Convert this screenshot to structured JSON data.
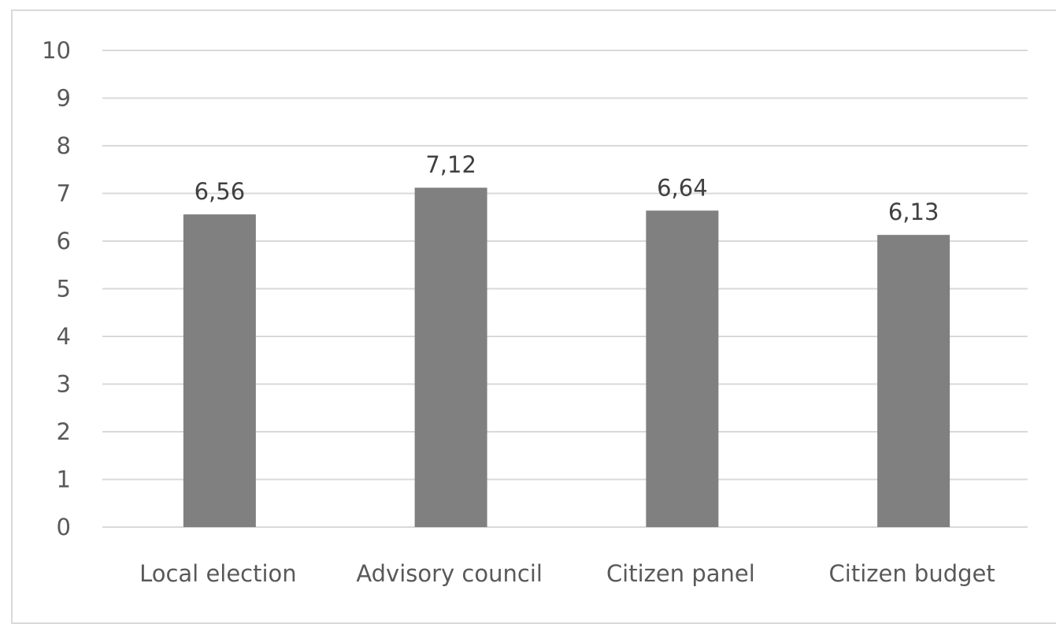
{
  "chart_data": {
    "type": "bar",
    "title": "",
    "xlabel": "",
    "ylabel": "",
    "categories": [
      "Local election",
      "Advisory council",
      "Citizen panel",
      "Citizen budget"
    ],
    "values": [
      6.56,
      7.12,
      6.64,
      6.13
    ],
    "data_labels": [
      "6,56",
      "7,12",
      "6,64",
      "6,13"
    ],
    "ylim": [
      0,
      10
    ],
    "yticks": [
      0,
      1,
      2,
      3,
      4,
      5,
      6,
      7,
      8,
      9,
      10
    ],
    "grid": true,
    "legend": "none",
    "bar_color": "#808080"
  }
}
